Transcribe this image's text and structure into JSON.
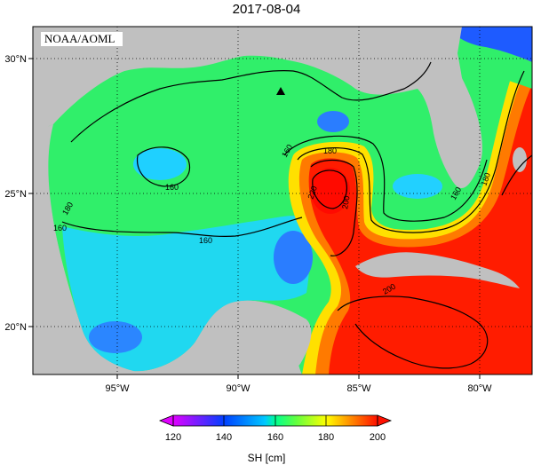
{
  "title": "2017-08-04",
  "credit": "NOAA/AOML",
  "map": {
    "lon_ticks": [
      "95°W",
      "90°W",
      "85°W",
      "80°W"
    ],
    "lat_ticks": [
      "30°N",
      "25°N",
      "20°N"
    ],
    "contour_labels": [
      "160",
      "180",
      "160",
      "160",
      "180",
      "220",
      "200",
      "160",
      "180",
      "160",
      "200"
    ],
    "marker": "triangle"
  },
  "colorbar": {
    "label": "SH [cm]",
    "ticks": [
      "120",
      "140",
      "160",
      "180",
      "200"
    ],
    "range": [
      120,
      200
    ],
    "colors": {
      "120": "#e000ff",
      "140": "#0040ff",
      "160": "#00e0ff",
      "170": "#00ff80",
      "180": "#ffff00",
      "190": "#ff8000",
      "200": "#ff1000"
    }
  },
  "palette": {
    "land": "#c0c0c0",
    "deep_blue": "#1e5bff"
  }
}
